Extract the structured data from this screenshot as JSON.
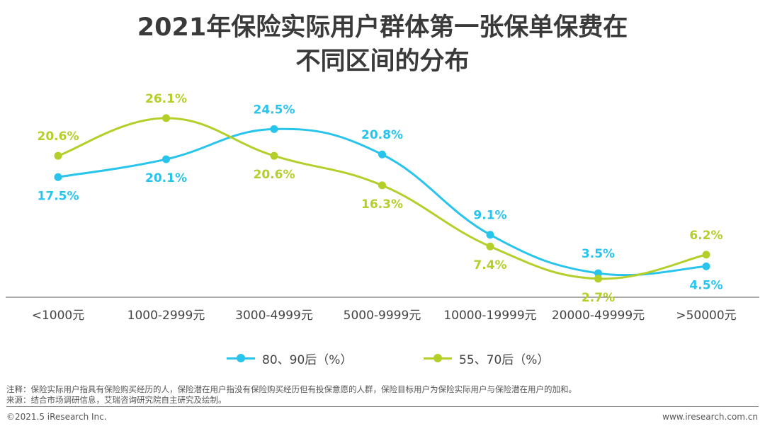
{
  "title_line1": "2021年保险实际用户群体第一张保单保费在",
  "title_line2": "不同区间的分布",
  "colors": {
    "series1": "#29c4ec",
    "series2": "#b4cf2a",
    "axis": "#555555"
  },
  "chart_data": {
    "type": "line",
    "categories": [
      "<1000元",
      "1000-2999元",
      "3000-4999元",
      "5000-9999元",
      "10000-19999元",
      "20000-49999元",
      ">50000元"
    ],
    "series": [
      {
        "name": "80、90后（%）",
        "values": [
          17.5,
          20.1,
          24.5,
          20.8,
          9.1,
          3.5,
          4.5
        ],
        "labels": [
          "17.5%",
          "20.1%",
          "24.5%",
          "20.8%",
          "9.1%",
          "3.5%",
          "4.5%"
        ]
      },
      {
        "name": "55、70后（%）",
        "values": [
          20.6,
          26.1,
          20.6,
          16.3,
          7.4,
          2.7,
          6.2
        ],
        "labels": [
          "20.6%",
          "26.1%",
          "20.6%",
          "16.3%",
          "7.4%",
          "2.7%",
          "6.2%"
        ]
      }
    ],
    "smooth": true,
    "legend_position": "bottom"
  },
  "legend": {
    "item1": "80、90后（%）",
    "item2": "55、70后（%）"
  },
  "notes": {
    "note1": "注释：保险实际用户指具有保险购买经历的人，保险潜在用户指没有保险购买经历但有投保意愿的人群，保险目标用户为保险实际用户与保险潜在用户的加和。",
    "note2": "来源：结合市场调研信息，艾瑞咨询研究院自主研究及绘制。"
  },
  "footer": {
    "copyright": "©2021.5 iResearch Inc.",
    "website": "www.iresearch.com.cn"
  }
}
